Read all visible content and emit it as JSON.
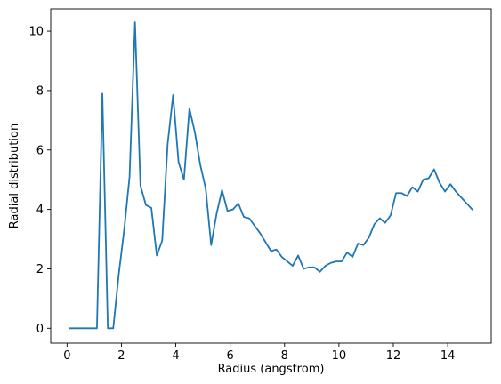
{
  "chart_data": {
    "type": "line",
    "title": "",
    "xlabel": "Radius (angstrom)",
    "ylabel": "Radial distribution",
    "xlim": [
      -0.6,
      15.6
    ],
    "ylim": [
      -0.5,
      10.75
    ],
    "grid": false,
    "legend": "none",
    "x_ticks": [
      0,
      2,
      4,
      6,
      8,
      10,
      12,
      14
    ],
    "y_ticks": [
      0,
      2,
      4,
      6,
      8,
      10
    ],
    "line_color": "#1f77b4",
    "series": [
      {
        "x": [
          0.1,
          0.3,
          0.5,
          0.7,
          0.9,
          1.1,
          1.3,
          1.5,
          1.7,
          1.9,
          2.1,
          2.3,
          2.5,
          2.7,
          2.9,
          3.1,
          3.3,
          3.5,
          3.7,
          3.9,
          4.1,
          4.3,
          4.5,
          4.7,
          4.9,
          5.1,
          5.3,
          5.5,
          5.7,
          5.9,
          6.1,
          6.3,
          6.5,
          6.7,
          6.9,
          7.1,
          7.3,
          7.5,
          7.7,
          7.9,
          8.1,
          8.3,
          8.5,
          8.7,
          8.9,
          9.1,
          9.3,
          9.5,
          9.7,
          9.9,
          10.1,
          10.3,
          10.5,
          10.7,
          10.9,
          11.1,
          11.3,
          11.5,
          11.7,
          11.9,
          12.1,
          12.3,
          12.5,
          12.7,
          12.9,
          13.1,
          13.3,
          13.5,
          13.7,
          13.9,
          14.1,
          14.3,
          14.5,
          14.7,
          14.9
        ],
        "y": [
          0.0,
          0.0,
          0.0,
          0.0,
          0.0,
          0.0,
          7.9,
          0.0,
          0.0,
          1.8,
          3.3,
          5.1,
          10.3,
          4.8,
          4.15,
          4.05,
          2.45,
          2.95,
          6.2,
          7.85,
          5.6,
          5.0,
          7.4,
          6.6,
          5.5,
          4.7,
          2.8,
          3.85,
          4.65,
          3.95,
          4.0,
          4.2,
          3.75,
          3.7,
          3.45,
          3.2,
          2.9,
          2.6,
          2.65,
          2.4,
          2.25,
          2.1,
          2.45,
          2.0,
          2.05,
          2.05,
          1.9,
          2.1,
          2.2,
          2.25,
          2.25,
          2.55,
          2.4,
          2.85,
          2.8,
          3.05,
          3.5,
          3.7,
          3.55,
          3.8,
          4.55,
          4.55,
          4.45,
          4.75,
          4.6,
          5.0,
          5.05,
          5.35,
          4.9,
          4.6,
          4.85,
          4.6,
          4.4,
          4.2,
          4.0
        ]
      }
    ]
  }
}
